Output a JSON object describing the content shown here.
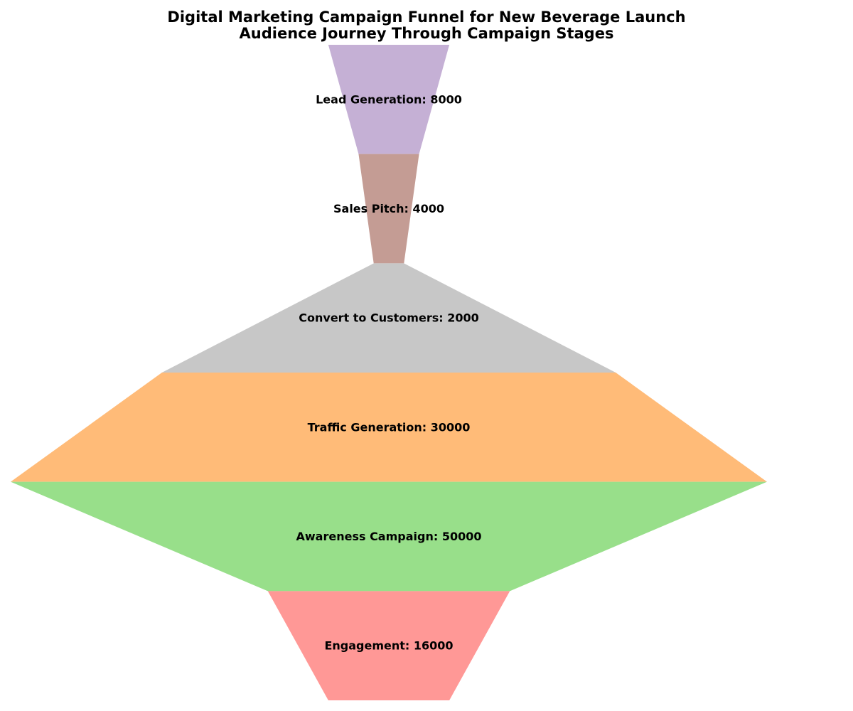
{
  "chart_data": {
    "type": "funnel",
    "title": "Digital Marketing Campaign Funnel for New Beverage Launch",
    "subtitle": "Audience Journey Through Campaign Stages",
    "stages": [
      {
        "name": "Lead Generation",
        "value": 8000,
        "color": "#c5b0d5"
      },
      {
        "name": "Sales Pitch",
        "value": 4000,
        "color": "#c49c94"
      },
      {
        "name": "Convert to Customers",
        "value": 2000,
        "color": "#c7c7c7"
      },
      {
        "name": "Traffic Generation",
        "value": 30000,
        "color": "#ffbb78"
      },
      {
        "name": "Awareness Campaign",
        "value": 50000,
        "color": "#98df8a"
      },
      {
        "name": "Engagement",
        "value": 16000,
        "color": "#ff9896"
      }
    ],
    "grid": false,
    "axes_visible": false
  }
}
